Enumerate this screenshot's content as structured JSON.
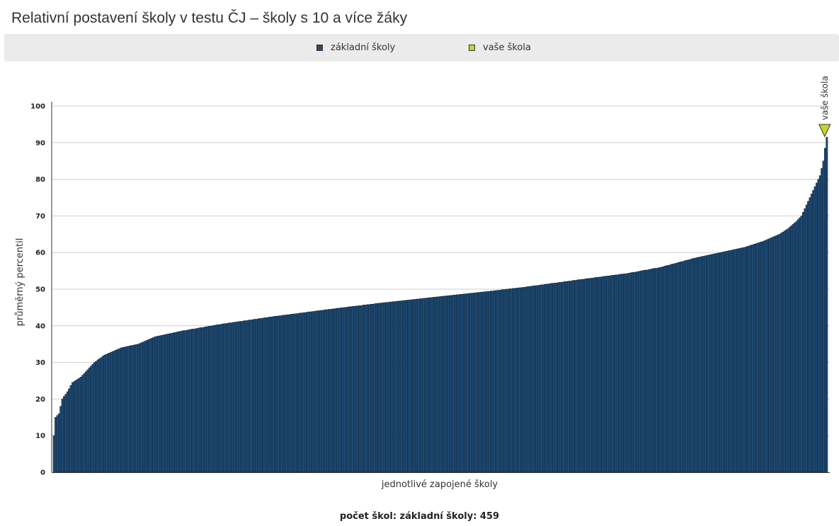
{
  "title": "Relativní postavení školy v testu ČJ – školy s 10 a více žáky",
  "legend": {
    "items": [
      {
        "label": "základní školy",
        "color": "#1f4e79"
      },
      {
        "label": "vaše škola",
        "color": "#c8d32a"
      }
    ]
  },
  "footer": "počet škol: základní školy: 459",
  "chart_data": {
    "type": "bar",
    "xlabel": "jednotlivé zapojené školy",
    "ylabel": "průměrný percentil",
    "ylim": [
      0,
      100
    ],
    "yticks": [
      0,
      10,
      20,
      30,
      40,
      50,
      60,
      70,
      80,
      90,
      100
    ],
    "grid": true,
    "bar_color": "#1f4e79",
    "bar_edge_color": "#0d1b2a",
    "marker_color": "#c8d32a",
    "marker_label": "vaše škola",
    "marker_index": 458,
    "n_schools": 459,
    "curve_knots": [
      [
        0,
        10
      ],
      [
        1,
        15
      ],
      [
        3,
        16
      ],
      [
        5,
        20
      ],
      [
        8,
        22
      ],
      [
        11,
        24.5
      ],
      [
        16,
        26
      ],
      [
        20,
        28
      ],
      [
        24,
        30
      ],
      [
        30,
        32
      ],
      [
        40,
        34
      ],
      [
        50,
        35
      ],
      [
        60,
        37
      ],
      [
        75,
        38.5
      ],
      [
        100,
        40.5
      ],
      [
        130,
        42.5
      ],
      [
        160,
        44.3
      ],
      [
        190,
        46
      ],
      [
        220,
        47.5
      ],
      [
        250,
        49
      ],
      [
        280,
        50.6
      ],
      [
        310,
        52.5
      ],
      [
        340,
        54.3
      ],
      [
        360,
        56
      ],
      [
        380,
        58.5
      ],
      [
        400,
        60.5
      ],
      [
        410,
        61.5
      ],
      [
        420,
        63
      ],
      [
        430,
        65
      ],
      [
        435,
        66.5
      ],
      [
        440,
        68.5
      ],
      [
        443,
        70
      ],
      [
        446,
        73
      ],
      [
        449,
        76
      ],
      [
        452,
        79
      ],
      [
        454,
        81
      ],
      [
        455,
        83
      ],
      [
        456,
        85
      ],
      [
        457,
        88.5
      ],
      [
        458,
        91.5
      ]
    ]
  }
}
